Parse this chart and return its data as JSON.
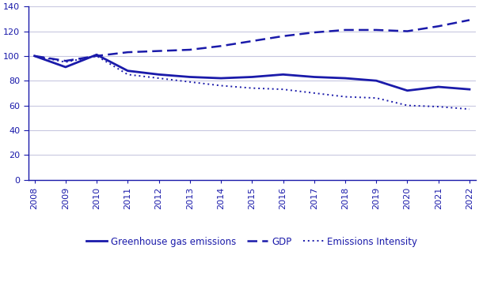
{
  "years": [
    2008,
    2009,
    2010,
    2011,
    2012,
    2013,
    2014,
    2015,
    2016,
    2017,
    2018,
    2019,
    2020,
    2021,
    2022
  ],
  "greenhouse_gas": [
    100,
    91,
    101,
    88,
    85,
    83,
    82,
    83,
    85,
    83,
    82,
    80,
    72,
    75,
    73
  ],
  "gdp": [
    100,
    96,
    100,
    103,
    104,
    105,
    108,
    112,
    116,
    119,
    121,
    121,
    120,
    124,
    129
  ],
  "emissions_intensity": [
    100,
    95,
    100,
    85,
    82,
    79,
    76,
    74,
    73,
    70,
    67,
    66,
    60,
    59,
    57
  ],
  "line_color": "#1a1aaa",
  "ylim": [
    0,
    140
  ],
  "yticks": [
    0,
    20,
    40,
    60,
    80,
    100,
    120,
    140
  ],
  "xlim": [
    2008,
    2022
  ],
  "legend_labels": [
    "Greenhouse gas emissions",
    "GDP",
    "Emissions Intensity"
  ],
  "grid_color": "#c8c8e0",
  "background_color": "#ffffff",
  "label_fontsize": 8.5,
  "tick_fontsize": 8.0
}
